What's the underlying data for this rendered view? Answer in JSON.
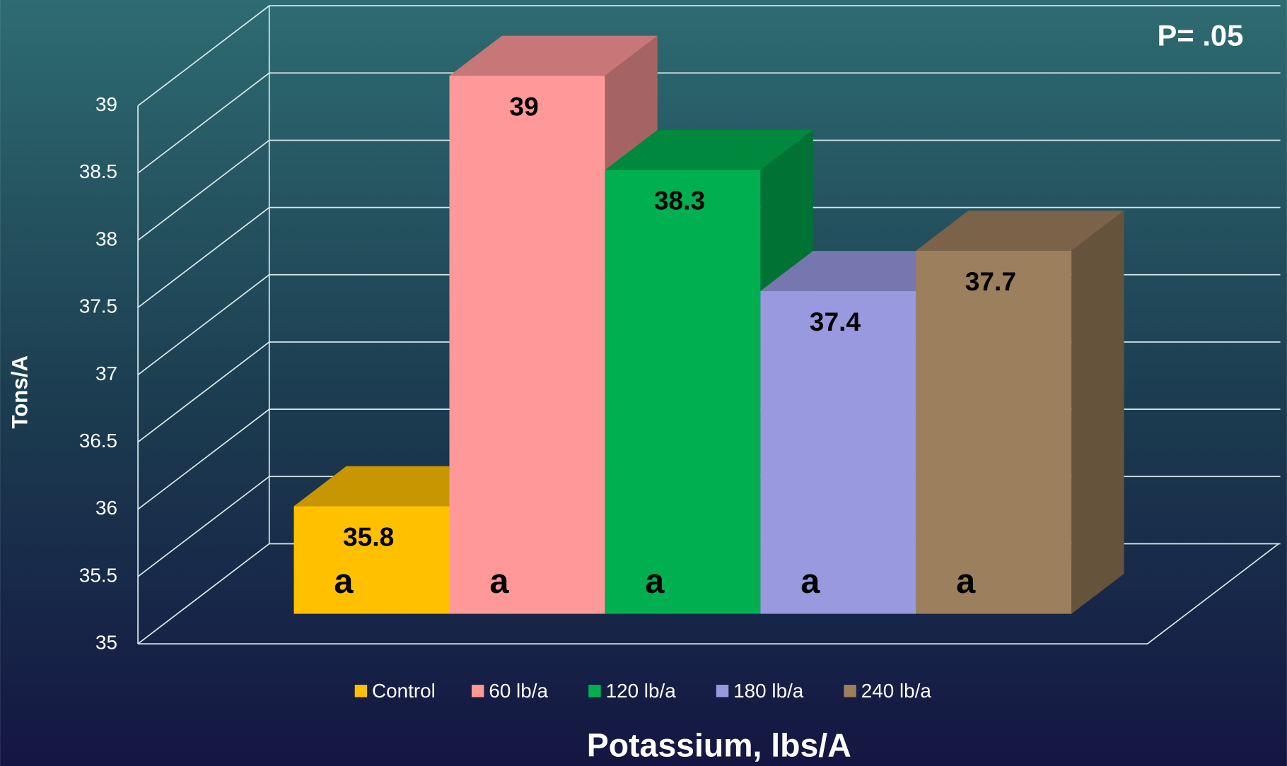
{
  "chart_data": {
    "type": "bar3d",
    "annotation": "P= .05",
    "xlabel": "Potassium, lbs/A",
    "ylabel": "Tons/A",
    "series": [
      {
        "name": "Control",
        "color": "#ffc000",
        "values": [
          35.8
        ],
        "letters": [
          "a"
        ]
      },
      {
        "name": "60 lb/a",
        "color": "#ff9999",
        "values": [
          39
        ],
        "letters": [
          "a"
        ]
      },
      {
        "name": "120 lb/a",
        "color": "#00b050",
        "values": [
          38.3
        ],
        "letters": [
          "a"
        ]
      },
      {
        "name": "180 lb/a",
        "color": "#9999e0",
        "values": [
          37.4
        ],
        "letters": [
          "a"
        ]
      },
      {
        "name": "240 lb/a",
        "color": "#9c7f5c",
        "values": [
          37.7
        ],
        "letters": [
          "a"
        ]
      }
    ],
    "ylim": [
      35,
      39
    ],
    "yticks": [
      35,
      35.5,
      36,
      36.5,
      37,
      37.5,
      38,
      38.5,
      39
    ],
    "grid": true
  }
}
